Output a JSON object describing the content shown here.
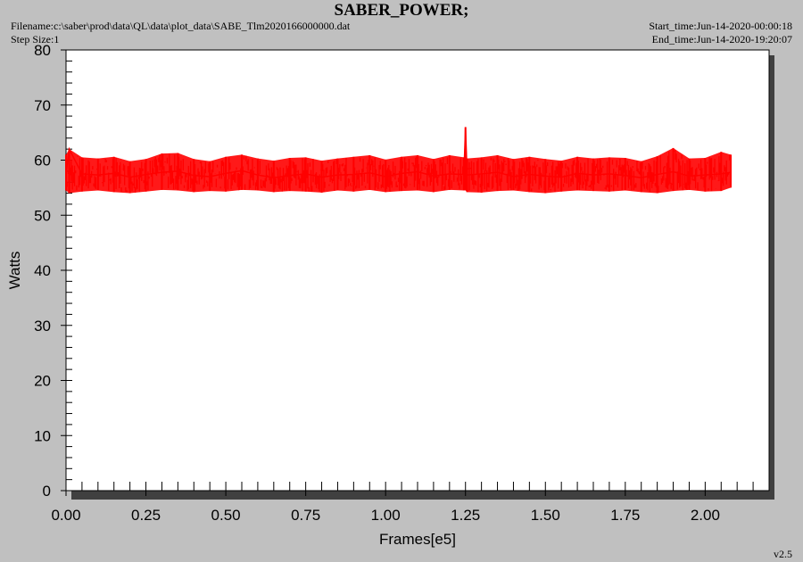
{
  "header": {
    "title": "SABER_POWER;",
    "filename": "Filename:c:\\saber\\prod\\data\\QL\\data\\plot_data\\SABE_Tlm2020166000000.dat",
    "step_size": "Step Size:1",
    "start_time": "Start_time:Jun-14-2020-00:00:18",
    "end_time": "End_time:Jun-14-2020-19:20:07",
    "version": "v2.5"
  },
  "colors": {
    "background": "#c0c0c0",
    "plot_area": "#ffffff",
    "series": "#ff0000",
    "shadow": "#404040"
  },
  "chart_data": {
    "type": "line",
    "xlabel": "Frames[e5]",
    "ylabel": "Watts",
    "xlim": [
      0,
      2.2
    ],
    "ylim": [
      0,
      80
    ],
    "x_ticks": [
      0.0,
      0.25,
      0.5,
      0.75,
      1.0,
      1.25,
      1.5,
      1.75,
      2.0
    ],
    "x_tick_labels": [
      "0.00",
      "0.25",
      "0.50",
      "0.75",
      "1.00",
      "1.25",
      "1.50",
      "1.75",
      "2.00"
    ],
    "y_ticks": [
      0,
      10,
      20,
      30,
      40,
      50,
      60,
      70,
      80
    ],
    "y_tick_labels": [
      "0",
      "10",
      "20",
      "30",
      "40",
      "50",
      "60",
      "70",
      "80"
    ],
    "grid": false,
    "series": [
      {
        "color": "#ff0000",
        "x": [
          0.0,
          0.01,
          0.05,
          0.1,
          0.15,
          0.2,
          0.25,
          0.3,
          0.35,
          0.4,
          0.45,
          0.5,
          0.55,
          0.6,
          0.65,
          0.7,
          0.75,
          0.8,
          0.85,
          0.9,
          0.95,
          1.0,
          1.05,
          1.1,
          1.15,
          1.2,
          1.245,
          1.25,
          1.255,
          1.3,
          1.35,
          1.4,
          1.45,
          1.5,
          1.55,
          1.6,
          1.65,
          1.7,
          1.75,
          1.8,
          1.85,
          1.9,
          1.95,
          2.0,
          2.05,
          2.08
        ],
        "y": [
          57.5,
          62.0,
          57.5,
          57.3,
          57.6,
          56.9,
          57.4,
          57.8,
          58.0,
          57.2,
          57.0,
          57.6,
          58.1,
          57.3,
          56.8,
          57.2,
          57.5,
          56.9,
          57.3,
          57.4,
          57.7,
          57.0,
          57.6,
          57.9,
          57.1,
          57.5,
          57.4,
          66.0,
          57.3,
          57.5,
          57.8,
          57.0,
          57.4,
          57.1,
          56.9,
          57.6,
          57.3,
          57.5,
          57.2,
          56.8,
          57.4,
          57.9,
          57.1,
          57.3,
          57.5,
          57.8
        ],
        "y_min": [
          54.5,
          54.0,
          54.3,
          54.5,
          54.2,
          54.0,
          54.3,
          54.6,
          54.5,
          54.2,
          54.4,
          54.3,
          54.6,
          54.5,
          54.2,
          54.4,
          54.3,
          54.1,
          54.5,
          54.3,
          54.6,
          54.2,
          54.4,
          54.5,
          54.2,
          54.6,
          54.5,
          54.5,
          54.2,
          54.1,
          54.4,
          54.5,
          54.2,
          54.0,
          54.3,
          54.5,
          54.4,
          54.3,
          54.5,
          54.2,
          54.0,
          54.4,
          54.6,
          54.3,
          54.4,
          55.0
        ],
        "y_max": [
          61.0,
          62.0,
          60.5,
          60.3,
          60.6,
          59.8,
          60.2,
          61.2,
          61.3,
          60.2,
          59.8,
          60.6,
          61.0,
          60.3,
          59.9,
          60.4,
          60.5,
          59.9,
          60.3,
          60.6,
          60.9,
          60.1,
          60.6,
          60.9,
          60.2,
          60.9,
          60.5,
          66.0,
          60.3,
          60.5,
          60.9,
          60.2,
          60.6,
          60.2,
          59.9,
          60.6,
          60.3,
          60.5,
          60.4,
          59.8,
          60.7,
          62.2,
          60.3,
          60.4,
          61.5,
          61.0
        ]
      }
    ]
  }
}
